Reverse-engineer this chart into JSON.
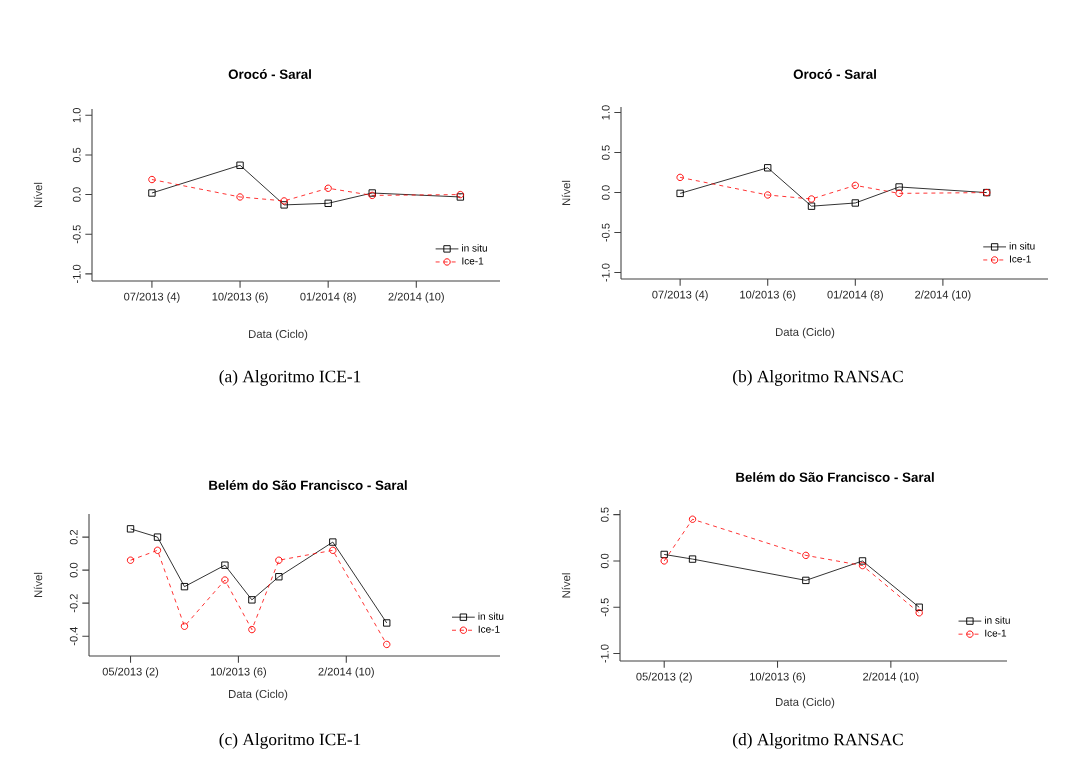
{
  "chart_data": [
    {
      "type": "line",
      "title": "Orocó - Saral",
      "xlabel": "Data (Ciclo)",
      "ylabel": "Nível",
      "annotations": [
        "(a) Algoritmo ICE-1"
      ],
      "categories": [
        "07/2013 (4)",
        null,
        "10/2013 (6)",
        null,
        "01/2014 (8)",
        null,
        "2/2014 (10)",
        null
      ],
      "series": [
        {
          "name": "in situ",
          "color": "#000000",
          "marker": "square",
          "line_style": "solid",
          "values": [
            0.02,
            null,
            0.37,
            -0.13,
            -0.11,
            0.02,
            null,
            -0.03
          ]
        },
        {
          "name": "Ice-1",
          "color": "#ff0000",
          "marker": "circle",
          "line_style": "dashed",
          "values": [
            0.19,
            null,
            -0.03,
            -0.08,
            0.08,
            -0.01,
            null,
            0.0
          ]
        }
      ],
      "ylim": [
        -1.09,
        1.08
      ],
      "yticks": [
        {
          "value": -1,
          "label": "-1.0"
        },
        {
          "value": -0.5,
          "label": "-0.5"
        },
        {
          "value": 0,
          "label": "0.0"
        },
        {
          "value": 0.5,
          "label": "0.5"
        },
        {
          "value": 1,
          "label": "1.0"
        }
      ],
      "legend": "bottom right"
    },
    {
      "type": "line",
      "title": "Orocó - Saral",
      "xlabel": "Data (Ciclo)",
      "ylabel": "Nível",
      "annotations": [
        "(b) Algoritmo RANSAC"
      ],
      "categories": [
        "07/2013 (4)",
        null,
        "10/2013 (6)",
        null,
        "01/2014 (8)",
        null,
        "2/2014 (10)",
        null
      ],
      "series": [
        {
          "name": "in situ",
          "color": "#000000",
          "marker": "square",
          "line_style": "solid",
          "values": [
            -0.01,
            null,
            0.31,
            -0.17,
            -0.13,
            0.07,
            null,
            0.0
          ]
        },
        {
          "name": "Ice-1",
          "color": "#ff0000",
          "marker": "circle",
          "line_style": "dashed",
          "values": [
            0.19,
            null,
            -0.03,
            -0.08,
            0.09,
            -0.01,
            null,
            0.0
          ]
        }
      ],
      "ylim": [
        -1.08,
        1.07
      ],
      "yticks": [
        {
          "value": -1,
          "label": "-1.0"
        },
        {
          "value": -0.5,
          "label": "-0.5"
        },
        {
          "value": 0,
          "label": "0.0"
        },
        {
          "value": 0.5,
          "label": "0.5"
        },
        {
          "value": 1,
          "label": "1.0"
        }
      ],
      "legend": "bottom right"
    },
    {
      "type": "line",
      "title": "Belém do São Francisco - Saral",
      "xlabel": "Data (Ciclo)",
      "ylabel": "Nível",
      "annotations": [
        "(c) Algoritmo ICE-1"
      ],
      "categories": [
        "05/2013 (2)",
        null,
        null,
        null,
        null,
        null,
        null,
        null,
        "10/2013 (6)",
        null,
        null,
        null,
        null,
        null,
        null,
        null,
        "2/2014 (10)",
        null,
        null,
        null,
        null
      ],
      "series": [
        {
          "name": "in situ",
          "color": "#000000",
          "marker": "square",
          "line_style": "solid",
          "values": [
            0.25,
            null,
            0.2,
            null,
            -0.1,
            null,
            null,
            0.03,
            null,
            -0.18,
            null,
            -0.04,
            null,
            null,
            null,
            0.17,
            null,
            null,
            null,
            -0.32,
            null
          ]
        },
        {
          "name": "Ice-1",
          "color": "#ff0000",
          "marker": "circle",
          "line_style": "dashed",
          "values": [
            0.06,
            null,
            0.12,
            null,
            -0.34,
            null,
            null,
            -0.06,
            null,
            -0.36,
            null,
            0.06,
            null,
            null,
            null,
            0.12,
            null,
            null,
            null,
            -0.45,
            null
          ]
        }
      ],
      "ylim": [
        -0.52,
        0.34
      ],
      "yticks": [
        -0.4,
        -0.2,
        {
          "value": 0,
          "label": "0.0"
        },
        0.2
      ],
      "legend": "right"
    },
    {
      "type": "line",
      "title": "Belém do São Francisco - Saral",
      "xlabel": "Data (Ciclo)",
      "ylabel": "Nível",
      "annotations": [
        "(d) Algoritmo RANSAC"
      ],
      "categories": [
        "05/2013 (2)",
        null,
        null,
        null,
        "10/2013 (6)",
        null,
        null,
        null,
        "2/2014 (10)",
        null
      ],
      "series": [
        {
          "name": "in situ",
          "color": "#000000",
          "marker": "square",
          "line_style": "solid",
          "values": [
            0.07,
            0.02,
            null,
            null,
            null,
            -0.21,
            null,
            0.0,
            null,
            -0.5
          ]
        },
        {
          "name": "Ice-1",
          "color": "#ff0000",
          "marker": "circle",
          "line_style": "dashed",
          "values": [
            0.0,
            0.45,
            null,
            null,
            null,
            0.06,
            null,
            -0.05,
            null,
            -0.56
          ]
        }
      ],
      "ylim": [
        -1.08,
        0.55
      ],
      "yticks": [
        {
          "value": -1,
          "label": "-1.0"
        },
        {
          "value": -0.5,
          "label": "-0.5"
        },
        {
          "value": 0,
          "label": "0.0"
        },
        {
          "value": 0.5,
          "label": "0.5"
        }
      ],
      "legend": "right"
    }
  ]
}
